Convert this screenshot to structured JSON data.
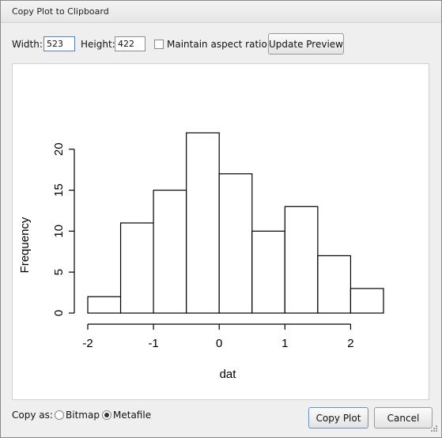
{
  "window": {
    "title": "Copy Plot to Clipboard"
  },
  "toolbar": {
    "width_label": "Width:",
    "width_value": "523",
    "height_label": "Height:",
    "height_value": "422",
    "aspect_label": "Maintain aspect ratio",
    "aspect_checked": false,
    "update_label": "Update Preview"
  },
  "chart_data": {
    "type": "bar",
    "bins": [
      [
        -2,
        -1.5
      ],
      [
        -1.5,
        -1
      ],
      [
        -1,
        -0.5
      ],
      [
        -0.5,
        0
      ],
      [
        0,
        0.5
      ],
      [
        0.5,
        1
      ],
      [
        1,
        1.5
      ],
      [
        1.5,
        2
      ],
      [
        2,
        2.5
      ]
    ],
    "values": [
      2,
      11,
      15,
      22,
      17,
      10,
      13,
      7,
      3
    ],
    "xlabel": "dat",
    "ylabel": "Frequency",
    "xlim": [
      -2,
      2.5
    ],
    "ylim": [
      0,
      22
    ],
    "xticks": [
      -2,
      -1,
      0,
      1,
      2
    ],
    "yticks": [
      0,
      5,
      10,
      15,
      20
    ],
    "fill": "#ffffff",
    "stroke": "#000000"
  },
  "footer": {
    "copy_as_label": "Copy as:",
    "bitmap_label": "Bitmap",
    "metafile_label": "Metafile",
    "selected": "Metafile",
    "copy_button": "Copy Plot",
    "cancel_button": "Cancel"
  }
}
